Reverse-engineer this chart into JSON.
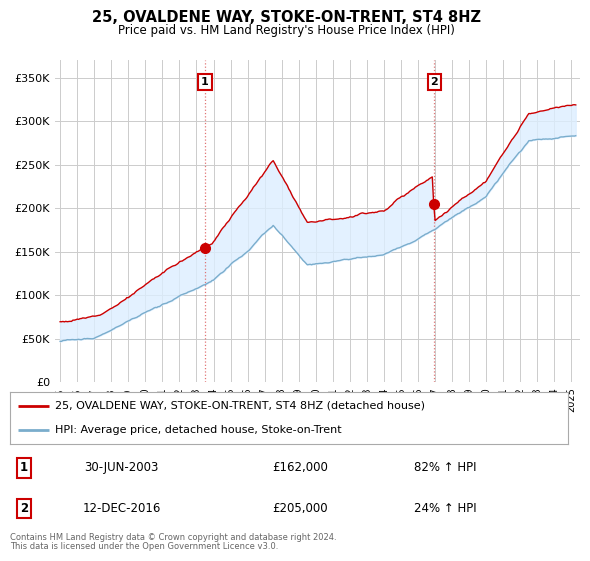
{
  "title": "25, OVALDENE WAY, STOKE-ON-TRENT, ST4 8HZ",
  "subtitle": "Price paid vs. HM Land Registry's House Price Index (HPI)",
  "legend_line1": "25, OVALDENE WAY, STOKE-ON-TRENT, ST4 8HZ (detached house)",
  "legend_line2": "HPI: Average price, detached house, Stoke-on-Trent",
  "footer1": "Contains HM Land Registry data © Crown copyright and database right 2024.",
  "footer2": "This data is licensed under the Open Government Licence v3.0.",
  "transaction1_date": "30-JUN-2003",
  "transaction1_price": "£162,000",
  "transaction1_hpi": "82% ↑ HPI",
  "transaction2_date": "12-DEC-2016",
  "transaction2_price": "£205,000",
  "transaction2_hpi": "24% ↑ HPI",
  "house_color": "#cc0000",
  "hpi_color": "#7aadcc",
  "fill_color": "#ddeeff",
  "vline_color": "#dd6666",
  "ylim": [
    0,
    370000
  ],
  "yticks": [
    0,
    50000,
    100000,
    150000,
    200000,
    250000,
    300000,
    350000
  ],
  "xlim_start": 1994.7,
  "xlim_end": 2025.5,
  "marker1_x": 2003.5,
  "marker1_y": 162000,
  "marker2_x": 2016.95,
  "marker2_y": 205000,
  "background_color": "#ffffff",
  "grid_color": "#cccccc"
}
